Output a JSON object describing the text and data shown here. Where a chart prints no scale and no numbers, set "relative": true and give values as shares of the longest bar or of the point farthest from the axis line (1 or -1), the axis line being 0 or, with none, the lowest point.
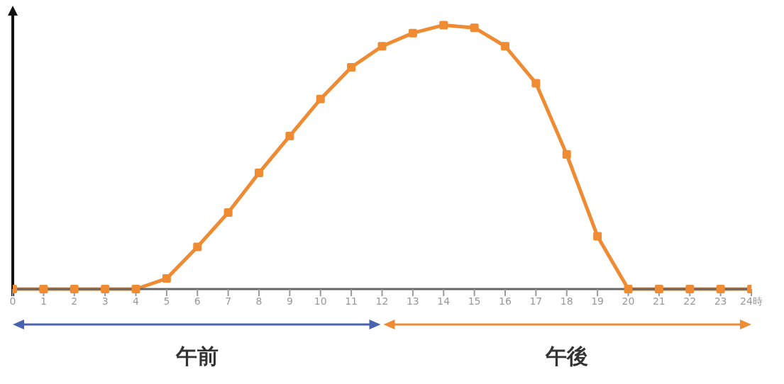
{
  "chart_data": {
    "type": "line",
    "relative": true,
    "x": [
      0,
      1,
      2,
      3,
      4,
      5,
      6,
      7,
      8,
      9,
      10,
      11,
      12,
      13,
      14,
      15,
      16,
      17,
      18,
      19,
      20,
      21,
      22,
      23,
      24
    ],
    "series": [
      {
        "color": "#ee8b33",
        "values": [
          0,
          0,
          0,
          0,
          0,
          0.04,
          0.16,
          0.29,
          0.44,
          0.58,
          0.72,
          0.84,
          0.92,
          0.97,
          1,
          0.99,
          0.92,
          0.78,
          0.51,
          0.2,
          0,
          0,
          0,
          0,
          0
        ]
      }
    ],
    "xlim": [
      0,
      24
    ],
    "xticks": [
      0,
      1,
      2,
      3,
      4,
      5,
      6,
      7,
      8,
      9,
      10,
      11,
      12,
      13,
      14,
      15,
      16,
      17,
      18,
      19,
      20,
      21,
      22,
      23,
      {
        "value": 24,
        "label": "24時"
      }
    ],
    "annotations": [
      "午前",
      "午後"
    ],
    "marker": "square",
    "line_style": "solid"
  }
}
